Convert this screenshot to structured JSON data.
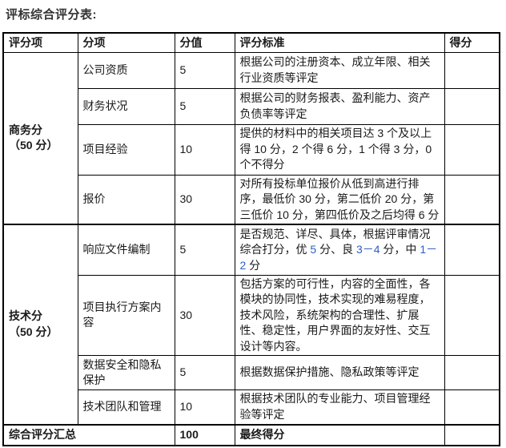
{
  "title": "评标综合评分表:",
  "colors": {
    "number_blue": "#2e5fc4"
  },
  "table": {
    "headers": [
      "评分项",
      "分项",
      "分值",
      "评分标准",
      "得分"
    ],
    "groups": [
      {
        "label_line1": "商务分",
        "label_line2": "（50 分）",
        "rows": [
          {
            "item": "公司资质",
            "score": "5",
            "criteria": "根据公司的注册资本、成立年限、相关行业资质等评定"
          },
          {
            "item": "财务状况",
            "score": "5",
            "criteria": "根据公司的财务报表、盈利能力、资产负债率等评定"
          },
          {
            "item": "项目经验",
            "score": "10",
            "criteria": "提供的材料中的相关项目达 3 个及以上得 10 分，2 个得 6 分，1 个得 3 分，0 个不得分"
          },
          {
            "item": "报价",
            "score": "30",
            "criteria": "对所有投标单位报价从低到高进行排序，最低价 30 分，第二低价 20 分，第三低价 10 分，第四低价及之后均得 6 分"
          }
        ]
      },
      {
        "label_line1": "技术分",
        "label_line2": "（50 分）",
        "rows": [
          {
            "item": "响应文件编制",
            "score": "5",
            "criteria_segments": [
              {
                "text": "是否规范、详尽、具体，根据评审情况综合打分，优 "
              },
              {
                "text": "5",
                "color": "#2e5fc4"
              },
              {
                "text": " 分、良 "
              },
              {
                "text": "3－4",
                "color": "#2e5fc4"
              },
              {
                "text": " 分，中 "
              },
              {
                "text": "1－2",
                "color": "#2e5fc4"
              },
              {
                "text": " 分"
              }
            ]
          },
          {
            "item": "项目执行方案内容",
            "score": "30",
            "criteria": "包括方案的可行性，内容的全面性，各模块的协同性，技术实现的难易程度，技术风险，系统架构的合理性、扩展性、稳定性，用户界面的友好性、交互设计等内容。"
          },
          {
            "item": "数据安全和隐私保护",
            "score": "5",
            "criteria": "根据数据保护措施、隐私政策等评定"
          },
          {
            "item": "技术团队和管理",
            "score": "10",
            "criteria": "根据技术团队的专业能力、项目管理经验等评定"
          }
        ]
      }
    ],
    "footer": {
      "label": "综合评分汇总",
      "score": "100",
      "criteria": "最终得分"
    }
  }
}
